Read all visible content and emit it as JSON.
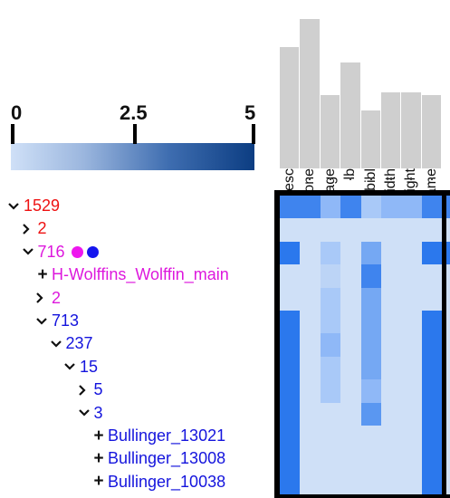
{
  "legend": {
    "ticks": [
      "0",
      "2.5",
      "5"
    ],
    "colors": {
      "low": "#cfe0f7",
      "high": "#0c3d82"
    }
  },
  "tree": {
    "rows": [
      {
        "label": "1529",
        "color": "red",
        "twist": "expanded",
        "depth": 0
      },
      {
        "label": "2",
        "color": "red",
        "twist": "collapsed",
        "depth": 1
      },
      {
        "label": "716",
        "color": "magenta",
        "twist": "expanded",
        "depth": 1,
        "dots": [
          "#ee17ee",
          "#1515ee"
        ]
      },
      {
        "label": "H-Wolffins_Wolffin_main",
        "color": "magenta",
        "twist": "leaf",
        "depth": 2
      },
      {
        "label": "2",
        "color": "magenta",
        "twist": "collapsed",
        "depth": 2
      },
      {
        "label": "713",
        "color": "blue",
        "twist": "expanded",
        "depth": 2
      },
      {
        "label": "237",
        "color": "blue",
        "twist": "expanded",
        "depth": 3
      },
      {
        "label": "15",
        "color": "blue",
        "twist": "expanded",
        "depth": 4
      },
      {
        "label": "5",
        "color": "blue",
        "twist": "collapsed",
        "depth": 5
      },
      {
        "label": "3",
        "color": "blue",
        "twist": "expanded",
        "depth": 5
      },
      {
        "label": "Bullinger_13021",
        "color": "blue",
        "twist": "leaf",
        "depth": 6
      },
      {
        "label": "Bullinger_13008",
        "color": "blue",
        "twist": "leaf",
        "depth": 6
      },
      {
        "label": "Bullinger_10038",
        "color": "blue",
        "twist": "leaf",
        "depth": 6
      }
    ]
  },
  "histogram": {
    "columns": [
      "msDesc",
      "zone",
      "language",
      "lb",
      "bibl",
      "width",
      "height",
      "persName"
    ],
    "relative_heights": [
      0.81,
      1.0,
      0.49,
      0.71,
      0.39,
      0.51,
      0.51,
      0.49
    ]
  },
  "heatmap": {
    "palette": {
      "a": "#cfe0f7",
      "b": "#bcd4f6",
      "c": "#a9c9f8",
      "d": "#8fb8f7",
      "e": "#75a8f3",
      "f": "#5a97f1",
      "g": "#3f84ee",
      "h": "#2b78ed",
      "i": "#1c6ee8"
    },
    "rows": [
      "ggdgcddgg",
      "aaaaaaaaa",
      "hacaeaahh",
      "aabagaaaa",
      "aacaeaaaa",
      "hacaeaaha",
      "hadaeaaha",
      "hacaeaaha",
      "hacadaaha",
      "haaafaaha",
      "haaaaaaha",
      "haaaaaaha",
      "haaaaaaha"
    ]
  }
}
